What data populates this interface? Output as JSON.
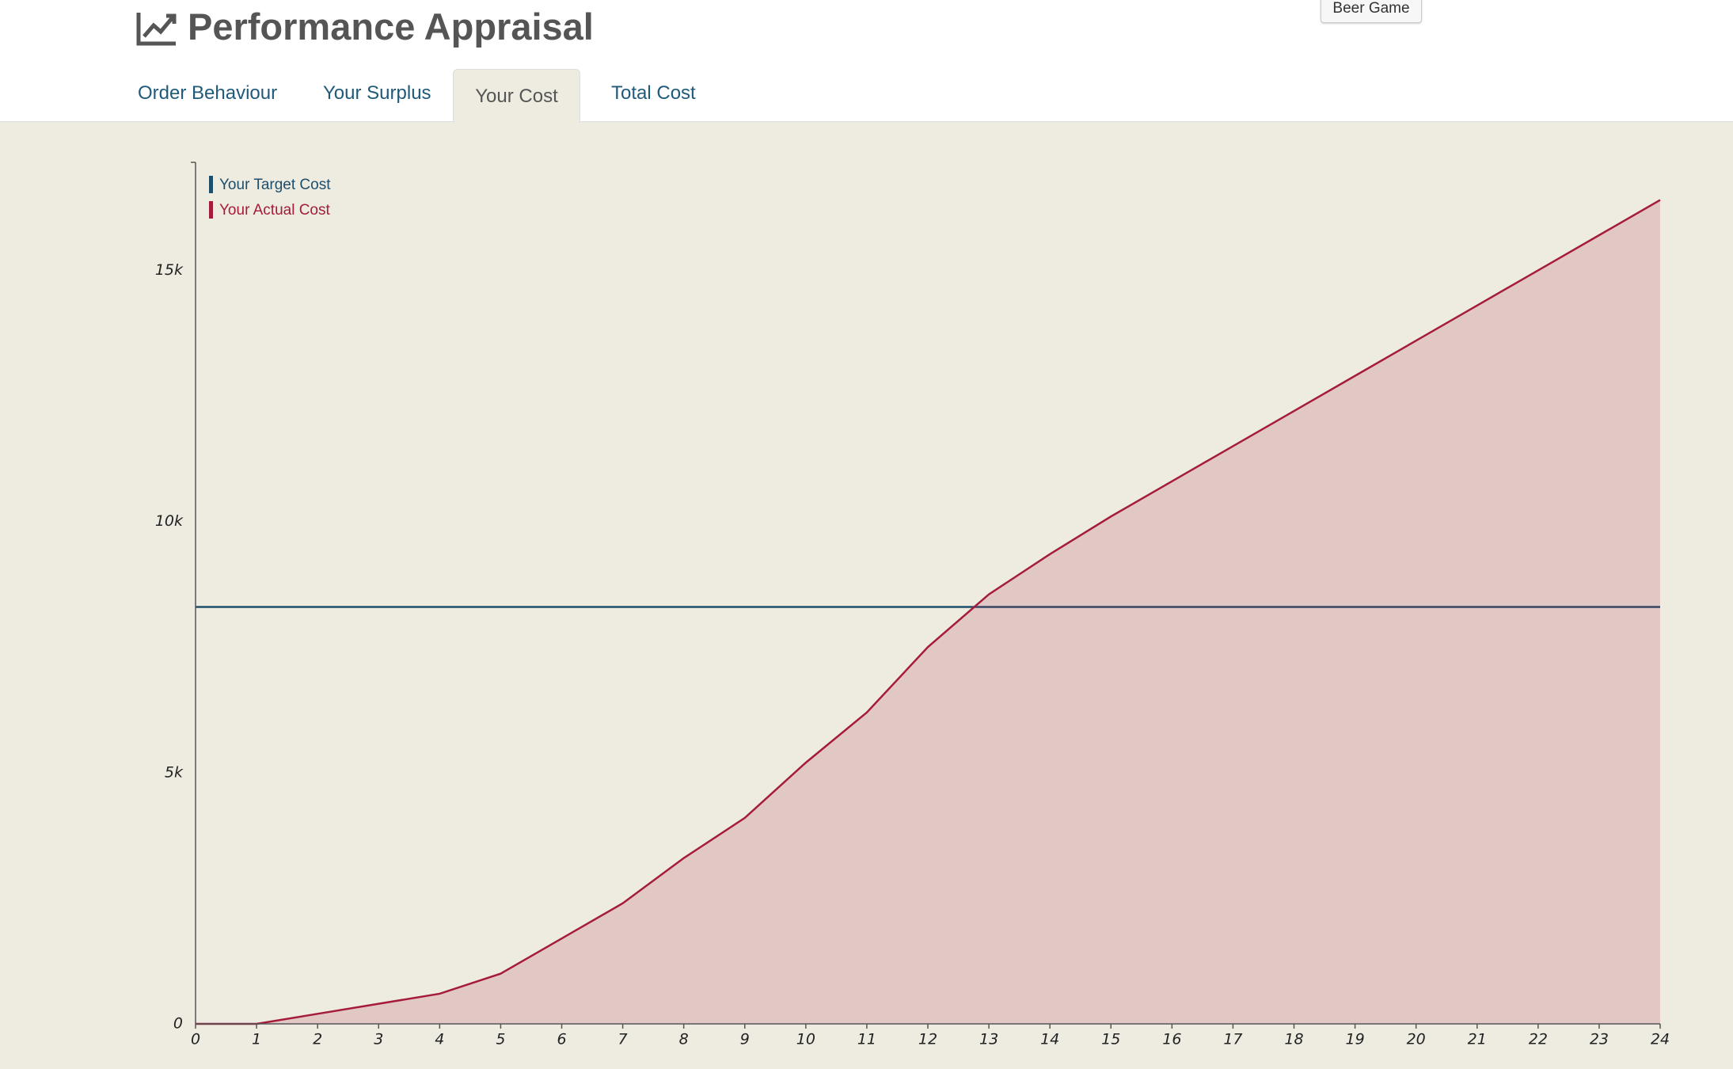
{
  "header": {
    "title": "Performance Appraisal",
    "button": "Beer Game"
  },
  "tabs": [
    "Order Behaviour",
    "Your Surplus",
    "Your Cost",
    "Total Cost"
  ],
  "chart_data": {
    "type": "area",
    "x": [
      0,
      1,
      2,
      3,
      4,
      5,
      6,
      7,
      8,
      9,
      10,
      11,
      12,
      13,
      14,
      15,
      16,
      17,
      18,
      19,
      20,
      21,
      22,
      23,
      24
    ],
    "series": [
      {
        "name": "Your Target Cost",
        "color": "#1f4e6b",
        "fill": false,
        "values": [
          8300,
          8300,
          8300,
          8300,
          8300,
          8300,
          8300,
          8300,
          8300,
          8300,
          8300,
          8300,
          8300,
          8300,
          8300,
          8300,
          8300,
          8300,
          8300,
          8300,
          8300,
          8300,
          8300,
          8300,
          8300
        ]
      },
      {
        "name": "Your Actual Cost",
        "color": "#a51c3a",
        "fill": true,
        "values": [
          0,
          0,
          200,
          400,
          600,
          1000,
          1700,
          2400,
          3300,
          4100,
          5200,
          6200,
          7500,
          8550,
          9350,
          10100,
          10800,
          11500,
          12200,
          12900,
          13600,
          14300,
          15000,
          15700,
          16400
        ]
      }
    ],
    "xlim": [
      0,
      24
    ],
    "xticks": [
      0,
      1,
      2,
      3,
      4,
      5,
      6,
      7,
      8,
      9,
      10,
      11,
      12,
      13,
      14,
      15,
      16,
      17,
      18,
      19,
      20,
      21,
      22,
      23,
      24
    ],
    "ylim": [
      0,
      17150
    ],
    "yticks": [
      0,
      {
        "value": 5000,
        "label": "5k"
      },
      {
        "value": 10000,
        "label": "10k"
      },
      {
        "value": 15000,
        "label": "15k"
      }
    ],
    "grid": false
  }
}
